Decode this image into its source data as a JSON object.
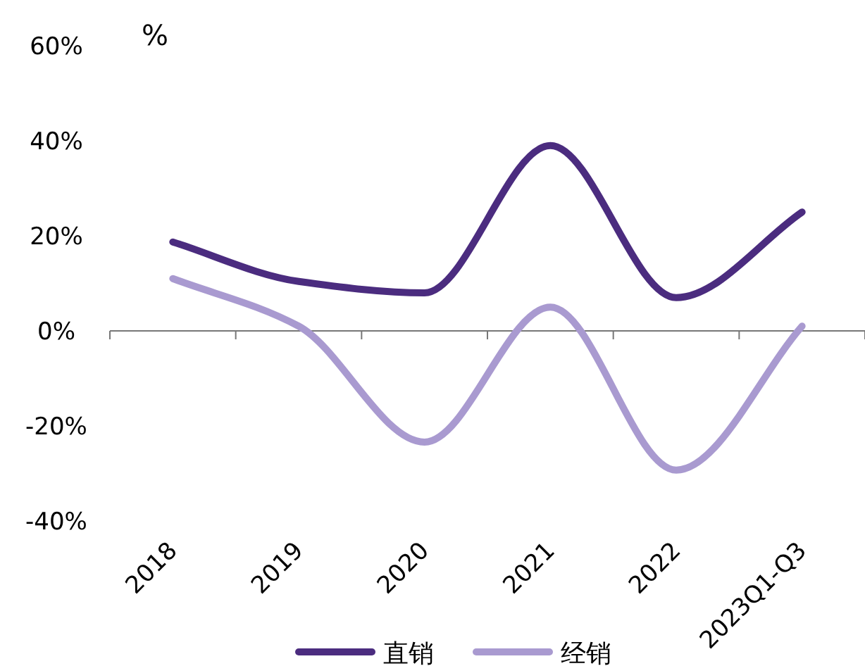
{
  "chart_data": {
    "type": "line",
    "ylabel": "%",
    "categories": [
      "2018",
      "2019",
      "2020",
      "2021",
      "2022",
      "2023Q1-Q3"
    ],
    "series": [
      {
        "name": "直销",
        "color": "#4b2c7f",
        "values": [
          18.7,
          10.4,
          8,
          39,
          7,
          25
        ]
      },
      {
        "name": "经销",
        "color": "#a99ad0",
        "values": [
          11,
          1,
          -23.4,
          5,
          -29.3,
          1
        ]
      }
    ],
    "ylim": [
      -40,
      60
    ],
    "yticks": [
      {
        "value": -40,
        "label": "-40%"
      },
      {
        "value": -20,
        "label": "-20%"
      },
      {
        "value": 0,
        "label": "0%"
      },
      {
        "value": 20,
        "label": "20%"
      },
      {
        "value": 40,
        "label": "40%"
      },
      {
        "value": 60,
        "label": "60%"
      }
    ],
    "legend": "bottom",
    "marker": "none",
    "line_style": "solid"
  }
}
